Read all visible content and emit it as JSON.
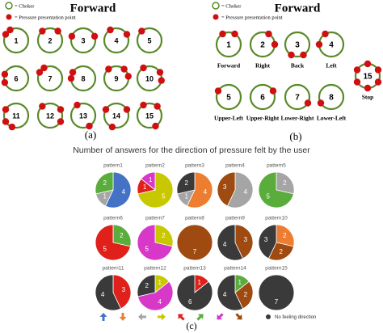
{
  "panel_a": {
    "title": "Forward",
    "legend": [
      "= Choker",
      "= Pressure presentation point"
    ],
    "circles": [
      "1",
      "2",
      "3",
      "4",
      "5",
      "6",
      "7",
      "8",
      "9",
      "10",
      "11",
      "12",
      "13",
      "14",
      "15"
    ],
    "label": "(a)"
  },
  "panel_b": {
    "title": "Forward",
    "legend": [
      "= Choker",
      "= Pressure presentation point"
    ],
    "circles": [
      {
        "number": "1",
        "label": "Forward"
      },
      {
        "number": "2",
        "label": "Right"
      },
      {
        "number": "3",
        "label": "Back"
      },
      {
        "number": "4",
        "label": "Left"
      },
      {
        "number": "5",
        "label": "Upper-Left"
      },
      {
        "number": "6",
        "label": "Upper-Right"
      },
      {
        "number": "7",
        "label": "Lower-Right"
      },
      {
        "number": "8",
        "label": "Lower-Left"
      },
      {
        "number": "15",
        "label": "Stop"
      }
    ],
    "label": "(b)"
  },
  "panel_c": {
    "title": "Number of answers for the direction of pressure felt by the user",
    "pies": [
      {
        "name": "pattern1",
        "slices": [
          {
            "color": "#4472c4",
            "value": 4
          },
          {
            "color": "#a5a5a5",
            "value": 1
          },
          {
            "color": "#5aac3c",
            "value": 2
          }
        ]
      },
      {
        "name": "pattern2",
        "slices": [
          {
            "color": "#c8c800",
            "value": 5
          },
          {
            "color": "#e0201a",
            "value": 1
          },
          {
            "color": "#d838c8",
            "value": 1
          }
        ]
      },
      {
        "name": "pattern3",
        "slices": [
          {
            "color": "#ed7d31",
            "value": 4
          },
          {
            "color": "#a5a5a5",
            "value": 1
          },
          {
            "color": "#3a3a3a",
            "value": 2
          }
        ]
      },
      {
        "name": "pattern4",
        "slices": [
          {
            "color": "#a5a5a5",
            "value": 4
          },
          {
            "color": "#9e4a10",
            "value": 3
          }
        ]
      },
      {
        "name": "pattern5",
        "slices": [
          {
            "color": "#a5a5a5",
            "value": 2
          },
          {
            "color": "#5aac3c",
            "value": 5
          }
        ]
      },
      {
        "name": "pattern6",
        "slices": [
          {
            "color": "#5aac3c",
            "value": 2
          },
          {
            "color": "#e0201a",
            "value": 5
          }
        ]
      },
      {
        "name": "pattern7",
        "slices": [
          {
            "color": "#c8c800",
            "value": 2
          },
          {
            "color": "#d838c8",
            "value": 5
          }
        ]
      },
      {
        "name": "pattern8",
        "slices": [
          {
            "color": "#9e4a10",
            "value": 7
          }
        ]
      },
      {
        "name": "pattern9",
        "slices": [
          {
            "color": "#9e4a10",
            "value": 3
          },
          {
            "color": "#3a3a3a",
            "value": 4
          }
        ]
      },
      {
        "name": "pattern10",
        "slices": [
          {
            "color": "#ed7d31",
            "value": 2
          },
          {
            "color": "#9e4a10",
            "value": 2
          },
          {
            "color": "#3a3a3a",
            "value": 3
          }
        ]
      },
      {
        "name": "pattern11",
        "slices": [
          {
            "color": "#e0201a",
            "value": 3
          },
          {
            "color": "#3a3a3a",
            "value": 4
          }
        ]
      },
      {
        "name": "pattern12",
        "slices": [
          {
            "color": "#c8c800",
            "value": 1
          },
          {
            "color": "#d838c8",
            "value": 4
          },
          {
            "color": "#3a3a3a",
            "value": 2
          }
        ]
      },
      {
        "name": "pattern13",
        "slices": [
          {
            "color": "#e0201a",
            "value": 1
          },
          {
            "color": "#3a3a3a",
            "value": 6
          }
        ]
      },
      {
        "name": "pattern14",
        "slices": [
          {
            "color": "#5aac3c",
            "value": 1
          },
          {
            "color": "#9e4a10",
            "value": 2
          },
          {
            "color": "#3a3a3a",
            "value": 4
          }
        ]
      },
      {
        "name": "pattern15",
        "slices": [
          {
            "color": "#3a3a3a",
            "value": 7
          }
        ]
      }
    ],
    "legend": {
      "colors": [
        "#4472c4",
        "#ed7d31",
        "#a5a5a5",
        "#c8c800",
        "#e0201a",
        "#5aac3c",
        "#d838c8",
        "#9e4a10",
        "#3a3a3a"
      ],
      "label": "No feeling direction"
    },
    "label": "(c)"
  }
}
